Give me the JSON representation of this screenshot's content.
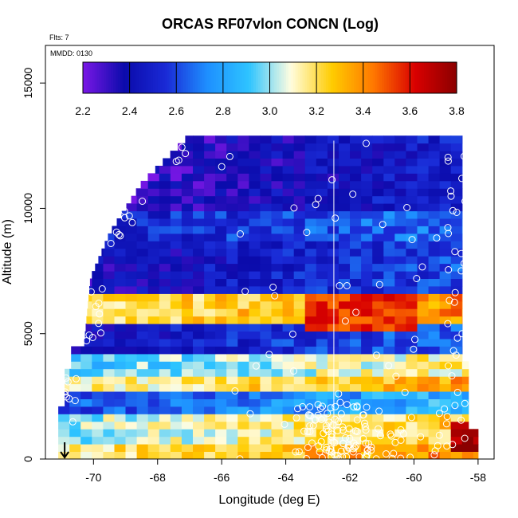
{
  "chart_data": {
    "type": "heatmap",
    "title": "ORCAS RF07vlon CONCN (Log)",
    "xlabel": "Longitude (deg E)",
    "ylabel": "Altitude (m)",
    "notes": [
      "Flts: 7",
      "MMDD: 0130"
    ],
    "xlim": [
      -71.5,
      -57.5
    ],
    "ylim": [
      0,
      16500
    ],
    "x_ticks": [
      -70,
      -68,
      -66,
      -64,
      -62,
      -60,
      -58
    ],
    "y_ticks": [
      0,
      5000,
      10000,
      15000
    ],
    "colorbar": {
      "range": [
        2.2,
        3.8
      ],
      "ticks": [
        "2.2",
        "2.4",
        "2.6",
        "2.8",
        "3.0",
        "3.2",
        "3.4",
        "3.6",
        "3.8"
      ],
      "placement": "top-inside"
    },
    "colors": [
      "#7a17e6",
      "#0b0bab",
      "#1a2ad6",
      "#1e90ff",
      "#2ec4ff",
      "#fffde0",
      "#ffcc00",
      "#ff7700",
      "#d90000",
      "#8b0000"
    ],
    "layers": [
      {
        "alt": [
          0,
          700
        ],
        "value": 3.3
      },
      {
        "alt": [
          700,
          1800
        ],
        "value": 3.15
      },
      {
        "alt": [
          1800,
          2600
        ],
        "value": 2.75
      },
      {
        "alt": [
          2600,
          3400
        ],
        "value": 3.25
      },
      {
        "alt": [
          3400,
          4300
        ],
        "value": 3.05
      },
      {
        "alt": [
          4300,
          5500
        ],
        "value": 2.55
      },
      {
        "alt": [
          5500,
          6500
        ],
        "value": 3.3
      },
      {
        "alt": [
          6500,
          8700
        ],
        "value": 2.5
      },
      {
        "alt": [
          8700,
          10000
        ],
        "value": 2.6
      },
      {
        "alt": [
          10000,
          12800
        ],
        "value": 2.4
      }
    ],
    "hotspots": [
      {
        "lon": [
          -63.5,
          -60
        ],
        "alt": [
          4900,
          6300
        ],
        "value": 3.55
      },
      {
        "lon": [
          -59,
          -58
        ],
        "alt": [
          300,
          1200
        ],
        "value": 3.75
      }
    ],
    "marker_longitude": -70.9,
    "flight_track_longitude": -62.5
  }
}
